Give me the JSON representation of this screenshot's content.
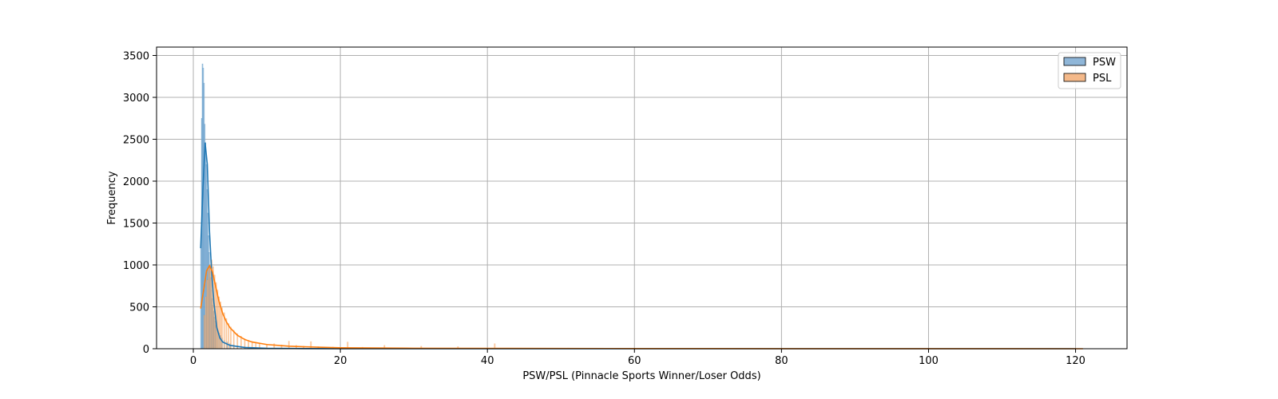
{
  "chart_data": {
    "type": "bar",
    "subtype": "histogram-with-kde",
    "title": "",
    "xlabel": "PSW/PSL (Pinnacle Sports Winner/Loser Odds)",
    "ylabel": "Frequency",
    "xlim": [
      -5,
      127
    ],
    "ylim": [
      0,
      3600
    ],
    "xticks": [
      0,
      20,
      40,
      60,
      80,
      100,
      120
    ],
    "yticks": [
      0,
      500,
      1000,
      1500,
      2000,
      2500,
      3000,
      3500
    ],
    "grid": true,
    "legend_position": "top-right",
    "series": [
      {
        "name": "PSW",
        "color": "#1f77b4",
        "fill": "#8fb6d8",
        "hist": [
          [
            1.05,
            1200
          ],
          [
            1.15,
            2750
          ],
          [
            1.25,
            3400
          ],
          [
            1.35,
            3350
          ],
          [
            1.45,
            3170
          ],
          [
            1.55,
            2680
          ],
          [
            1.65,
            2460
          ],
          [
            1.75,
            2200
          ],
          [
            1.85,
            1900
          ],
          [
            1.95,
            1620
          ],
          [
            2.05,
            1350
          ],
          [
            2.15,
            1150
          ],
          [
            2.25,
            980
          ],
          [
            2.35,
            850
          ],
          [
            2.45,
            700
          ],
          [
            2.55,
            600
          ],
          [
            2.65,
            520
          ],
          [
            2.75,
            450
          ],
          [
            2.85,
            380
          ],
          [
            2.95,
            330
          ],
          [
            3.1,
            280
          ],
          [
            3.3,
            230
          ],
          [
            3.5,
            190
          ],
          [
            3.7,
            160
          ],
          [
            3.9,
            130
          ],
          [
            4.2,
            100
          ],
          [
            4.6,
            80
          ],
          [
            5.0,
            60
          ],
          [
            5.5,
            45
          ],
          [
            6.0,
            35
          ],
          [
            7.0,
            25
          ],
          [
            8.0,
            18
          ],
          [
            10.0,
            10
          ],
          [
            13.0,
            6
          ],
          [
            17.0,
            4
          ]
        ],
        "kde": [
          [
            1.0,
            1200
          ],
          [
            1.3,
            1900
          ],
          [
            1.6,
            2460
          ],
          [
            1.9,
            2200
          ],
          [
            2.2,
            1400
          ],
          [
            2.5,
            900
          ],
          [
            2.8,
            550
          ],
          [
            3.2,
            250
          ],
          [
            3.6,
            130
          ],
          [
            4.0,
            80
          ],
          [
            5.0,
            40
          ],
          [
            7.0,
            15
          ],
          [
            10.0,
            6
          ],
          [
            15.0,
            2
          ],
          [
            20.0,
            1
          ],
          [
            40.0,
            0
          ],
          [
            120.0,
            0
          ]
        ]
      },
      {
        "name": "PSL",
        "color": "#ff7f0e",
        "fill": "#f4b98a",
        "hist": [
          [
            1.5,
            400
          ],
          [
            1.7,
            620
          ],
          [
            1.9,
            820
          ],
          [
            2.1,
            960
          ],
          [
            2.3,
            1000
          ],
          [
            2.5,
            1060
          ],
          [
            2.7,
            980
          ],
          [
            2.9,
            880
          ],
          [
            3.1,
            790
          ],
          [
            3.3,
            700
          ],
          [
            3.5,
            620
          ],
          [
            3.7,
            560
          ],
          [
            3.9,
            490
          ],
          [
            4.2,
            430
          ],
          [
            4.5,
            360
          ],
          [
            4.8,
            300
          ],
          [
            5.1,
            260
          ],
          [
            5.5,
            220
          ],
          [
            6.0,
            180
          ],
          [
            6.5,
            150
          ],
          [
            7.0,
            120
          ],
          [
            7.5,
            100
          ],
          [
            8.0,
            85
          ],
          [
            8.5,
            75
          ],
          [
            9.0,
            65
          ],
          [
            10.0,
            55
          ],
          [
            11.0,
            60
          ],
          [
            12.0,
            45
          ],
          [
            13.0,
            90
          ],
          [
            14.0,
            40
          ],
          [
            15.0,
            30
          ],
          [
            16.0,
            85
          ],
          [
            17.0,
            25
          ],
          [
            19.0,
            20
          ],
          [
            21.0,
            80
          ],
          [
            23.0,
            18
          ],
          [
            26.0,
            40
          ],
          [
            31.0,
            30
          ],
          [
            36.0,
            25
          ],
          [
            41.0,
            60
          ],
          [
            51.0,
            8
          ],
          [
            61.0,
            5
          ],
          [
            81.0,
            3
          ],
          [
            101.0,
            2
          ],
          [
            121.0,
            2
          ]
        ],
        "kde": [
          [
            1.0,
            480
          ],
          [
            1.4,
            700
          ],
          [
            1.8,
            930
          ],
          [
            2.2,
            990
          ],
          [
            2.6,
            920
          ],
          [
            3.0,
            760
          ],
          [
            3.5,
            560
          ],
          [
            4.0,
            420
          ],
          [
            4.5,
            320
          ],
          [
            5.0,
            250
          ],
          [
            6.0,
            160
          ],
          [
            7.0,
            110
          ],
          [
            8.0,
            80
          ],
          [
            10.0,
            50
          ],
          [
            13.0,
            30
          ],
          [
            17.0,
            18
          ],
          [
            20.0,
            12
          ],
          [
            30.0,
            6
          ],
          [
            40.0,
            4
          ],
          [
            60.0,
            2
          ],
          [
            80.0,
            1
          ],
          [
            121.0,
            0
          ]
        ]
      }
    ]
  }
}
